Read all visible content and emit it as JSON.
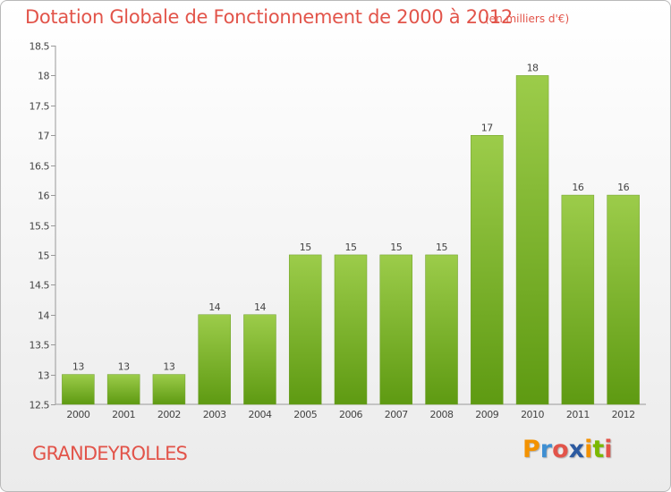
{
  "header": {
    "title": "Dotation Globale de Fonctionnement de 2000 à 2012",
    "units": "(en milliers d'€)"
  },
  "footer": {
    "city": "GRANDEYROLLES",
    "logo_letters": [
      "P",
      "r",
      "o",
      "x",
      "i",
      "t",
      "i"
    ],
    "logo_colors": [
      "#f39200",
      "#3f8fd2",
      "#e2544a",
      "#2c5aa0",
      "#f39200",
      "#7ab800",
      "#e2544a"
    ]
  },
  "colors": {
    "title": "#e2544a",
    "bar_top": "#9ccc4a",
    "bar_bottom": "#5e9a12"
  },
  "chart_data": {
    "type": "bar",
    "categories": [
      "2000",
      "2001",
      "2002",
      "2003",
      "2004",
      "2005",
      "2006",
      "2007",
      "2008",
      "2009",
      "2010",
      "2011",
      "2012"
    ],
    "values": [
      13,
      13,
      13,
      14,
      14,
      15,
      15,
      15,
      15,
      17,
      18,
      16,
      16
    ],
    "data_labels": [
      "13",
      "13",
      "13",
      "14",
      "14",
      "15",
      "15",
      "15",
      "15",
      "17",
      "18",
      "16",
      "16"
    ],
    "ylim": [
      12.5,
      18.5
    ],
    "yticks": [
      12.5,
      13,
      13.5,
      14,
      14.5,
      15,
      15.5,
      16,
      16.5,
      17,
      17.5,
      18,
      18.5
    ],
    "ytick_labels": [
      "12.5",
      "13",
      "13.5",
      "14",
      "14.5",
      "15",
      "15.5",
      "16",
      "16.5",
      "17",
      "17.5",
      "18",
      "18.5"
    ],
    "grid": false
  }
}
